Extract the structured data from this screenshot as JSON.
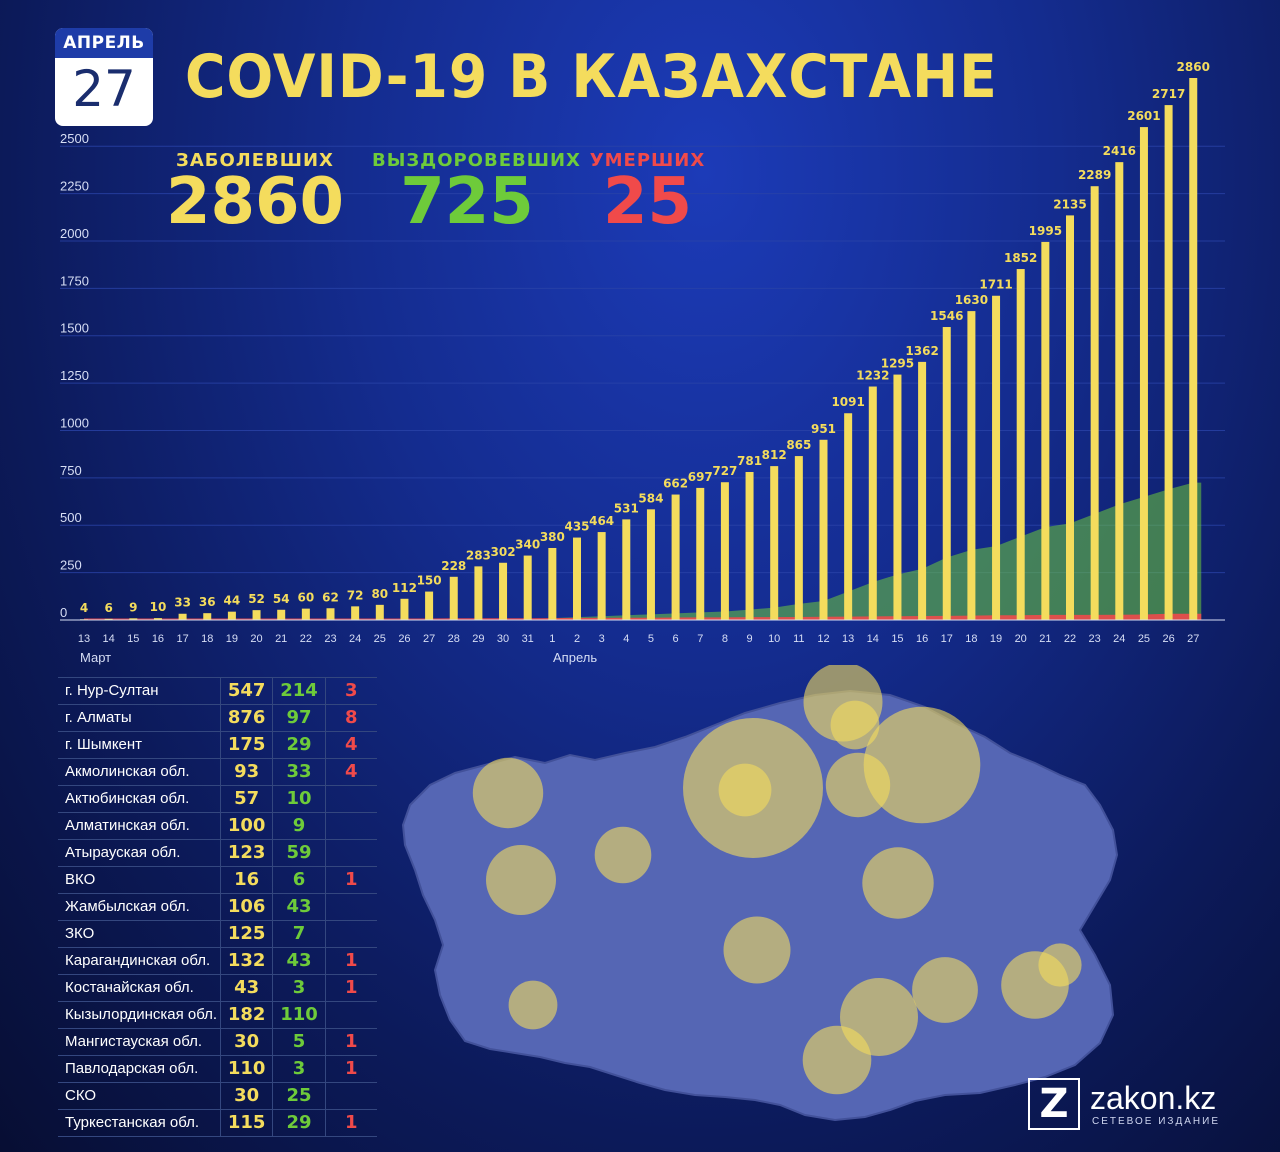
{
  "header": {
    "calendar_month": "АПРЕЛЬ",
    "calendar_day": "27",
    "title": "COVID-19 В КАЗАХСТАНЕ"
  },
  "stats": {
    "cases_label": "ЗАБОЛЕВШИХ",
    "cases_value": "2860",
    "recovered_label": "ВЫЗДОРОВЕВШИХ",
    "recovered_value": "725",
    "deaths_label": "УМЕРШИХ",
    "deaths_value": "25"
  },
  "colors": {
    "cases": "#f4dc5d",
    "recovered": "#6ecb3a",
    "deaths": "#f04a4a",
    "map_land": "#5566b4",
    "circle": "#f4dc5d"
  },
  "chart_data": {
    "type": "bar",
    "x": [
      "13",
      "14",
      "15",
      "16",
      "17",
      "18",
      "19",
      "20",
      "21",
      "22",
      "23",
      "24",
      "25",
      "26",
      "27",
      "28",
      "29",
      "30",
      "31",
      "1",
      "2",
      "3",
      "4",
      "5",
      "6",
      "7",
      "8",
      "9",
      "10",
      "11",
      "12",
      "13",
      "14",
      "15",
      "16",
      "17",
      "18",
      "19",
      "20",
      "21",
      "22",
      "23",
      "24",
      "25",
      "26",
      "27"
    ],
    "x_groups": [
      {
        "label": "Март"
      },
      {
        "label": "Апрель"
      }
    ],
    "y_ticks": [
      0,
      250,
      500,
      750,
      1000,
      1250,
      1500,
      1750,
      2000,
      2250,
      2500
    ],
    "ylim": [
      0,
      2860
    ],
    "grid": true,
    "series": [
      {
        "key": "cases",
        "values": [
          4,
          6,
          9,
          10,
          33,
          36,
          44,
          52,
          54,
          60,
          62,
          72,
          80,
          112,
          150,
          228,
          283,
          302,
          340,
          380,
          435,
          464,
          531,
          584,
          662,
          697,
          727,
          781,
          812,
          865,
          951,
          1091,
          1232,
          1295,
          1362,
          1546,
          1630,
          1711,
          1852,
          1995,
          2135,
          2289,
          2416,
          2601,
          2717,
          2860
        ]
      },
      {
        "key": "recovered",
        "values": [
          0,
          0,
          0,
          0,
          0,
          0,
          0,
          0,
          0,
          0,
          0,
          0,
          0,
          0,
          0,
          0,
          0,
          0,
          0,
          10,
          15,
          20,
          25,
          30,
          35,
          40,
          45,
          55,
          65,
          85,
          100,
          150,
          200,
          240,
          270,
          330,
          370,
          390,
          440,
          490,
          510,
          560,
          610,
          650,
          690,
          725
        ]
      },
      {
        "key": "deaths",
        "values": [
          0,
          0,
          0,
          0,
          0,
          0,
          0,
          0,
          0,
          0,
          0,
          0,
          0,
          0,
          0,
          1,
          1,
          1,
          1,
          2,
          3,
          3,
          4,
          4,
          5,
          6,
          6,
          7,
          7,
          8,
          9,
          10,
          11,
          12,
          13,
          14,
          15,
          17,
          17,
          19,
          19,
          19,
          20,
          21,
          25,
          25
        ]
      }
    ]
  },
  "regions": [
    {
      "name": "г. Нур-Султан",
      "cases": "547",
      "recovered": "214",
      "deaths": "3"
    },
    {
      "name": "г. Алматы",
      "cases": "876",
      "recovered": "97",
      "deaths": "8"
    },
    {
      "name": "г. Шымкент",
      "cases": "175",
      "recovered": "29",
      "deaths": "4"
    },
    {
      "name": "Акмолинская обл.",
      "cases": "93",
      "recovered": "33",
      "deaths": "4"
    },
    {
      "name": "Актюбинская обл.",
      "cases": "57",
      "recovered": "10",
      "deaths": ""
    },
    {
      "name": "Алматинская обл.",
      "cases": "100",
      "recovered": "9",
      "deaths": ""
    },
    {
      "name": "Атырауская обл.",
      "cases": "123",
      "recovered": "59",
      "deaths": ""
    },
    {
      "name": "ВКО",
      "cases": "16",
      "recovered": "6",
      "deaths": "1"
    },
    {
      "name": "Жамбылская обл.",
      "cases": "106",
      "recovered": "43",
      "deaths": ""
    },
    {
      "name": "ЗКО",
      "cases": "125",
      "recovered": "7",
      "deaths": ""
    },
    {
      "name": "Карагандинская обл.",
      "cases": "132",
      "recovered": "43",
      "deaths": "1"
    },
    {
      "name": "Костанайская обл.",
      "cases": "43",
      "recovered": "3",
      "deaths": "1"
    },
    {
      "name": "Кызылординская обл.",
      "cases": "182",
      "recovered": "110",
      "deaths": ""
    },
    {
      "name": "Мангистауская обл.",
      "cases": "30",
      "recovered": "5",
      "deaths": "1"
    },
    {
      "name": "Павлодарская обл.",
      "cases": "110",
      "recovered": "3",
      "deaths": "1"
    },
    {
      "name": "СКО",
      "cases": "30",
      "recovered": "25",
      "deaths": ""
    },
    {
      "name": "Туркестанская обл.",
      "cases": "115",
      "recovered": "29",
      "deaths": "1"
    }
  ],
  "logo": {
    "mark": "Z",
    "name": "zakon.kz",
    "subtitle": "СЕТЕВОЕ ИЗДАНИЕ"
  }
}
